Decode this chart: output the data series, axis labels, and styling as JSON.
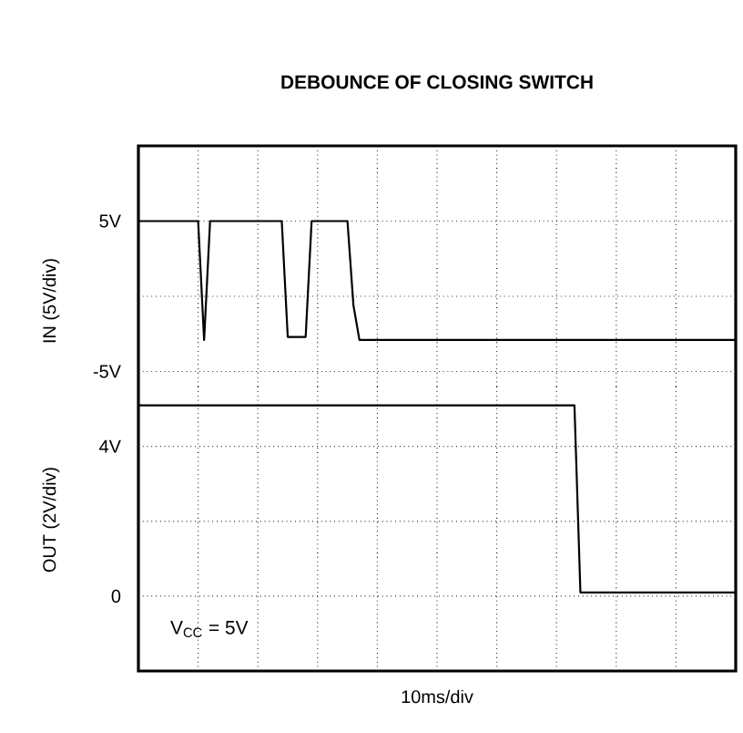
{
  "chart_data": [
    {
      "type": "line",
      "title": "DEBOUNCE OF CLOSING SWITCH",
      "ylabel": "IN (5V/div)",
      "categories": [
        null,
        null,
        null,
        null,
        null,
        null,
        null,
        null,
        null,
        null,
        null,
        null,
        null,
        null,
        null,
        null,
        null,
        null,
        null,
        null,
        null,
        null,
        null,
        null,
        null,
        null,
        null,
        null,
        null,
        null,
        null,
        null,
        null,
        null,
        null,
        null,
        null,
        null,
        null,
        null,
        null,
        null,
        null,
        null,
        null,
        null,
        null,
        null,
        null,
        null,
        null,
        null,
        null,
        null,
        null,
        null,
        null,
        null,
        null,
        null,
        null,
        null,
        null,
        null,
        null,
        null,
        null,
        null,
        null,
        null,
        null,
        null,
        null,
        null,
        null,
        null,
        null,
        null,
        null,
        null,
        null,
        null,
        null,
        null,
        null,
        null,
        null,
        null,
        null,
        null,
        null,
        null,
        null,
        null,
        null,
        null,
        null,
        null,
        null,
        null,
        null
      ],
      "ylim": [
        -6,
        10
      ],
      "yticks": [
        {
          "value": -5,
          "label": "-5V"
        },
        {
          "value": 0,
          "label": null
        },
        {
          "value": 5,
          "label": "5V"
        },
        {
          "value": 10,
          "label": null
        }
      ],
      "grid": true,
      "tick_labels": "y",
      "series": [
        {
          "color": "#000000",
          "values": [
            5,
            5,
            5,
            5,
            5,
            5,
            5,
            5,
            5,
            5,
            5,
            -2.9,
            5,
            5,
            5,
            5,
            5,
            5,
            5,
            5,
            5,
            5,
            5,
            5,
            5,
            -2.7,
            -2.7,
            -2.7,
            -2.7,
            5,
            5,
            5,
            5,
            5,
            5,
            5,
            -0.6,
            -2.9,
            -2.9,
            -2.9,
            -2.9,
            -2.9,
            -2.9,
            -2.9,
            -2.9,
            -2.9,
            -2.9,
            -2.9,
            -2.9,
            -2.9,
            -2.9,
            -2.9,
            -2.9,
            -2.9,
            -2.9,
            -2.9,
            -2.9,
            -2.9,
            -2.9,
            -2.9,
            -2.9,
            -2.9,
            -2.9,
            -2.9,
            -2.9,
            -2.9,
            -2.9,
            -2.9,
            -2.9,
            -2.9,
            -2.9,
            -2.9,
            -2.9,
            -2.9,
            -2.9,
            -2.9,
            -2.9,
            -2.9,
            -2.9,
            -2.9,
            -2.9,
            -2.9,
            -2.9,
            -2.9,
            -2.9,
            -2.9,
            -2.9,
            -2.9,
            -2.9,
            -2.9,
            -2.9,
            -2.9,
            -2.9,
            -2.9,
            -2.9,
            -2.9,
            -2.9,
            -2.9,
            -2.9,
            -2.9,
            -2.9
          ]
        }
      ]
    },
    {
      "type": "line",
      "ylabel": "OUT (2V/div)",
      "xlabel": "10ms/div",
      "annotations": [
        "V$_{CC}$ = 5V"
      ],
      "categories": [
        null,
        null,
        null,
        null,
        null,
        null,
        null,
        null,
        null,
        null,
        null,
        null,
        null,
        null,
        null,
        null,
        null,
        null,
        null,
        null,
        null,
        null,
        null,
        null,
        null,
        null,
        null,
        null,
        null,
        null,
        null,
        null,
        null,
        null,
        null,
        null,
        null,
        null,
        null,
        null,
        null,
        null,
        null,
        null,
        null,
        null,
        null,
        null,
        null,
        null,
        null,
        null,
        null,
        null,
        null,
        null,
        null,
        null,
        null,
        null,
        null,
        null,
        null,
        null,
        null,
        null,
        null,
        null,
        null,
        null,
        null,
        null,
        null,
        null,
        null,
        null,
        null,
        null,
        null,
        null,
        null,
        null,
        null,
        null,
        null,
        null,
        null,
        null,
        null,
        null,
        null,
        null,
        null,
        null,
        null,
        null,
        null,
        null,
        null,
        null,
        null
      ],
      "ylim": [
        -2,
        5.6
      ],
      "yticks": [
        {
          "value": 0,
          "label": "0"
        },
        {
          "value": 2,
          "label": null
        },
        {
          "value": 4,
          "label": "4V"
        }
      ],
      "grid": true,
      "tick_labels": "y",
      "series": [
        {
          "color": "#000000",
          "values": [
            5.1,
            5.1,
            5.1,
            5.1,
            5.1,
            5.1,
            5.1,
            5.1,
            5.1,
            5.1,
            5.1,
            5.1,
            5.1,
            5.1,
            5.1,
            5.1,
            5.1,
            5.1,
            5.1,
            5.1,
            5.1,
            5.1,
            5.1,
            5.1,
            5.1,
            5.1,
            5.1,
            5.1,
            5.1,
            5.1,
            5.1,
            5.1,
            5.1,
            5.1,
            5.1,
            5.1,
            5.1,
            5.1,
            5.1,
            5.1,
            5.1,
            5.1,
            5.1,
            5.1,
            5.1,
            5.1,
            5.1,
            5.1,
            5.1,
            5.1,
            5.1,
            5.1,
            5.1,
            5.1,
            5.1,
            5.1,
            5.1,
            5.1,
            5.1,
            5.1,
            5.1,
            5.1,
            5.1,
            5.1,
            5.1,
            5.1,
            5.1,
            5.1,
            5.1,
            5.1,
            5.1,
            5.1,
            5.1,
            5.1,
            0.1,
            0.1,
            0.1,
            0.1,
            0.1,
            0.1,
            0.1,
            0.1,
            0.1,
            0.1,
            0.1,
            0.1,
            0.1,
            0.1,
            0.1,
            0.1,
            0.1,
            0.1,
            0.1,
            0.1,
            0.1,
            0.1,
            0.1,
            0.1,
            0.1,
            0.1,
            0.1
          ]
        }
      ]
    }
  ]
}
